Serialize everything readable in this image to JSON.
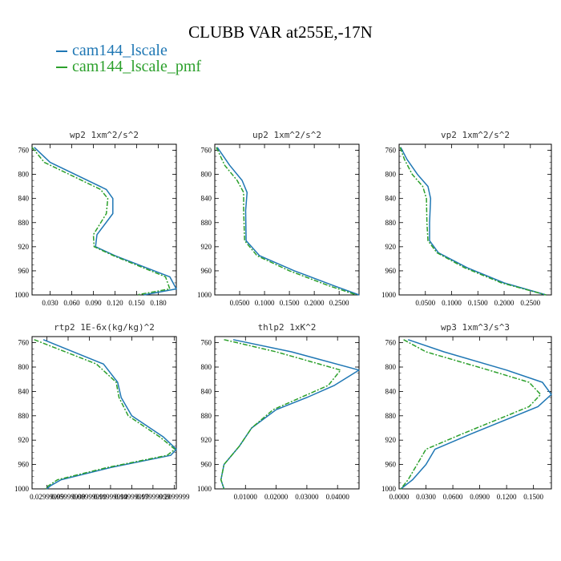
{
  "title": "CLUBB VAR at255E,-17N",
  "colors": {
    "series1": "#1f77b4",
    "series2": "#2ca02c",
    "axis": "#000000"
  },
  "legend": [
    {
      "label": "cam144_lscale",
      "color": "#1f77b4"
    },
    {
      "label": "cam144_lscale_pmf",
      "color": "#2ca02c"
    }
  ],
  "chart_data": [
    {
      "type": "line",
      "title": "wp2   1xm^2/s^2",
      "ylim": [
        1000,
        750
      ],
      "yticks": [
        760,
        800,
        840,
        880,
        920,
        960,
        1000
      ],
      "xlim": [
        0.005,
        0.205
      ],
      "xticks": [
        0.03,
        0.06,
        0.09,
        0.12,
        0.15,
        0.18
      ],
      "xticklabels": [
        "0.030",
        "0.060",
        "0.090",
        "0.120",
        "0.150",
        "0.180"
      ],
      "series": [
        {
          "name": "cam144_lscale",
          "x": [
            0.008,
            0.03,
            0.108,
            0.117,
            0.117,
            0.095,
            0.093,
            0.12,
            0.196,
            0.205,
            0.16
          ],
          "p": [
            755,
            780,
            825,
            840,
            865,
            900,
            920,
            935,
            970,
            990,
            1000
          ]
        },
        {
          "name": "cam144_lscale_pmf",
          "x": [
            0.005,
            0.022,
            0.1,
            0.11,
            0.108,
            0.09,
            0.091,
            0.118,
            0.19,
            0.196,
            0.15
          ],
          "p": [
            755,
            780,
            825,
            840,
            865,
            900,
            920,
            935,
            970,
            990,
            1000
          ]
        }
      ]
    },
    {
      "type": "line",
      "title": "up2   1xm^2/s^2",
      "ylim": [
        1000,
        750
      ],
      "yticks": [
        760,
        800,
        840,
        880,
        920,
        960,
        1000
      ],
      "xlim": [
        0.0,
        0.29
      ],
      "xticks": [
        0.05,
        0.1,
        0.15,
        0.2,
        0.25
      ],
      "xticklabels": [
        "0.0500",
        "0.1000",
        "0.1500",
        "0.2000",
        "0.2500"
      ],
      "series": [
        {
          "name": "cam144_lscale",
          "x": [
            0.005,
            0.03,
            0.055,
            0.065,
            0.062,
            0.063,
            0.09,
            0.16,
            0.24,
            0.29
          ],
          "p": [
            755,
            785,
            810,
            830,
            860,
            910,
            935,
            960,
            985,
            1000
          ]
        },
        {
          "name": "cam144_lscale_pmf",
          "x": [
            0.003,
            0.02,
            0.045,
            0.058,
            0.058,
            0.06,
            0.085,
            0.15,
            0.23,
            0.285
          ],
          "p": [
            755,
            785,
            810,
            830,
            860,
            910,
            935,
            960,
            985,
            1000
          ]
        }
      ]
    },
    {
      "type": "line",
      "title": "vp2   1xm^2/s^2",
      "ylim": [
        1000,
        750
      ],
      "yticks": [
        760,
        800,
        840,
        880,
        920,
        960,
        1000
      ],
      "xlim": [
        0.0,
        0.29
      ],
      "xticks": [
        0.05,
        0.1,
        0.15,
        0.2,
        0.25
      ],
      "xticklabels": [
        "0.0500",
        "0.1000",
        "0.1500",
        "0.2000",
        "0.2500"
      ],
      "series": [
        {
          "name": "cam144_lscale",
          "x": [
            0.003,
            0.015,
            0.035,
            0.055,
            0.06,
            0.058,
            0.058,
            0.075,
            0.13,
            0.2,
            0.28
          ],
          "p": [
            755,
            775,
            800,
            820,
            840,
            880,
            910,
            930,
            955,
            980,
            1000
          ]
        },
        {
          "name": "cam144_lscale_pmf",
          "x": [
            0.002,
            0.01,
            0.025,
            0.045,
            0.052,
            0.053,
            0.055,
            0.072,
            0.125,
            0.195,
            0.28
          ],
          "p": [
            755,
            775,
            800,
            820,
            840,
            880,
            910,
            930,
            955,
            980,
            1000
          ]
        }
      ]
    },
    {
      "type": "line",
      "title": "rtp2   1E-6x(kg/kg)^2",
      "ylim": [
        1000,
        750
      ],
      "yticks": [
        760,
        800,
        840,
        880,
        920,
        960,
        1000
      ],
      "xlim": [
        0.009,
        0.213
      ],
      "xticks": [
        0.03,
        0.06,
        0.09,
        0.12,
        0.15,
        0.18,
        0.21
      ],
      "xticklabels": [
        "0.02999999",
        "0.05999999",
        "0.08999999",
        "0.11999999",
        "0.14999999",
        "0.17999999",
        "0.2099999"
      ],
      "series": [
        {
          "name": "cam144_lscale",
          "x": [
            0.025,
            0.11,
            0.13,
            0.135,
            0.15,
            0.195,
            0.213,
            0.205,
            0.12,
            0.05,
            0.035,
            0.03
          ],
          "p": [
            755,
            795,
            825,
            850,
            880,
            915,
            935,
            945,
            965,
            985,
            995,
            1000
          ]
        },
        {
          "name": "cam144_lscale_pmf",
          "x": [
            0.012,
            0.1,
            0.128,
            0.132,
            0.145,
            0.19,
            0.211,
            0.2,
            0.115,
            0.045,
            0.032,
            0.028
          ],
          "p": [
            755,
            795,
            825,
            850,
            880,
            915,
            935,
            945,
            965,
            985,
            995,
            1000
          ]
        }
      ]
    },
    {
      "type": "line",
      "title": "thlp2   1xK^2",
      "ylim": [
        1000,
        750
      ],
      "yticks": [
        760,
        800,
        840,
        880,
        920,
        960,
        1000
      ],
      "xlim": [
        0.0,
        0.047
      ],
      "xticks": [
        0.01,
        0.02,
        0.03,
        0.04
      ],
      "xticklabels": [
        "0.01000",
        "0.02000",
        "0.03000",
        "0.04000"
      ],
      "series": [
        {
          "name": "cam144_lscale",
          "x": [
            0.006,
            0.025,
            0.047,
            0.039,
            0.03,
            0.02,
            0.012,
            0.008,
            0.003,
            0.002,
            0.003
          ],
          "p": [
            755,
            775,
            805,
            830,
            850,
            870,
            900,
            930,
            960,
            985,
            1000
          ]
        },
        {
          "name": "cam144_lscale_pmf",
          "x": [
            0.003,
            0.02,
            0.041,
            0.037,
            0.028,
            0.019,
            0.012,
            0.008,
            0.003,
            0.002,
            0.003
          ],
          "p": [
            755,
            775,
            805,
            830,
            850,
            870,
            900,
            930,
            960,
            985,
            1000
          ]
        }
      ]
    },
    {
      "type": "line",
      "title": "wp3   1xm^3/s^3",
      "ylim": [
        1000,
        750
      ],
      "yticks": [
        760,
        800,
        840,
        880,
        920,
        960,
        1000
      ],
      "xlim": [
        0.0,
        0.17
      ],
      "xticks": [
        0.0,
        0.03,
        0.06,
        0.09,
        0.12,
        0.15
      ],
      "xticklabels": [
        "0.0000",
        "0.0300",
        "0.0600",
        "0.0900",
        "0.1200",
        "0.1500"
      ],
      "series": [
        {
          "name": "cam144_lscale",
          "x": [
            0.01,
            0.05,
            0.12,
            0.16,
            0.17,
            0.155,
            0.08,
            0.04,
            0.03,
            0.015,
            0.002
          ],
          "p": [
            755,
            775,
            805,
            825,
            845,
            865,
            910,
            935,
            960,
            985,
            1000
          ]
        },
        {
          "name": "cam144_lscale_pmf",
          "x": [
            0.005,
            0.03,
            0.1,
            0.145,
            0.158,
            0.145,
            0.07,
            0.03,
            0.02,
            0.01,
            0.002
          ],
          "p": [
            755,
            775,
            805,
            825,
            845,
            865,
            910,
            935,
            960,
            985,
            1000
          ]
        }
      ]
    }
  ]
}
